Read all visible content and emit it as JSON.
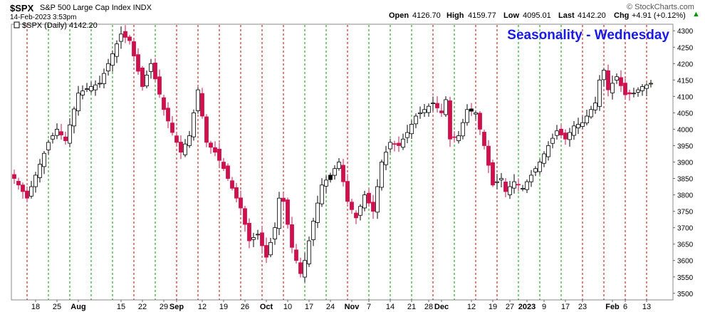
{
  "header": {
    "symbol": "$SPX",
    "description": "S&P 500 Large Cap Index INDX",
    "datetime": "14-Feb-2023 3:53pm",
    "open_label": "Open",
    "open": "4126.70",
    "high_label": "High",
    "high": "4159.77",
    "low_label": "Low",
    "low": "4095.01",
    "last_label": "Last",
    "last": "4142.20",
    "chg_label": "Chg",
    "chg": "+4.91 (+0.12%)",
    "watermark": "© StockCharts.com"
  },
  "legend": {
    "text": "$SPX (Daily) 4142.20"
  },
  "colors": {
    "up_candle": "#ffffff",
    "down_candle": "#d0104c",
    "filled_black": "#000000",
    "red_line": "#cc0000",
    "green_line": "#009900",
    "highlight": "#ffff66",
    "title": "#1a1ae6"
  },
  "chart_data": {
    "type": "candlestick",
    "title": "Seasonality - Wednesday",
    "y_range": [
      3480,
      4320
    ],
    "y_ticks": [
      3500,
      3550,
      3600,
      3650,
      3700,
      3750,
      3800,
      3850,
      3900,
      3950,
      4000,
      4050,
      4100,
      4150,
      4200,
      4250,
      4300
    ],
    "x_labels": [
      {
        "i": 5,
        "text": "18",
        "bold": false
      },
      {
        "i": 10,
        "text": "25",
        "bold": false
      },
      {
        "i": 15,
        "text": "Aug",
        "bold": true
      },
      {
        "i": 25,
        "text": "15",
        "bold": false
      },
      {
        "i": 30,
        "text": "22",
        "bold": false
      },
      {
        "i": 35,
        "text": "29",
        "bold": false
      },
      {
        "i": 38,
        "text": "Sep",
        "bold": true
      },
      {
        "i": 44,
        "text": "12",
        "bold": false
      },
      {
        "i": 49,
        "text": "19",
        "bold": false
      },
      {
        "i": 54,
        "text": "26",
        "bold": false
      },
      {
        "i": 59,
        "text": "Oct",
        "bold": true
      },
      {
        "i": 64,
        "text": "10",
        "bold": false
      },
      {
        "i": 69,
        "text": "17",
        "bold": false
      },
      {
        "i": 74,
        "text": "24",
        "bold": false
      },
      {
        "i": 79,
        "text": "Nov",
        "bold": true
      },
      {
        "i": 83,
        "text": "7",
        "bold": false
      },
      {
        "i": 88,
        "text": "14",
        "bold": false
      },
      {
        "i": 93,
        "text": "21",
        "bold": false
      },
      {
        "i": 97,
        "text": "28",
        "bold": false
      },
      {
        "i": 100,
        "text": "Dec",
        "bold": true
      },
      {
        "i": 107,
        "text": "12",
        "bold": false
      },
      {
        "i": 112,
        "text": "19",
        "bold": false
      },
      {
        "i": 116,
        "text": "27",
        "bold": false
      },
      {
        "i": 120,
        "text": "2023",
        "bold": true
      },
      {
        "i": 124,
        "text": "9",
        "bold": false
      },
      {
        "i": 129,
        "text": "17",
        "bold": false
      },
      {
        "i": 133,
        "text": "23",
        "bold": false
      },
      {
        "i": 140,
        "text": "Feb",
        "bold": true
      },
      {
        "i": 143,
        "text": "6",
        "bold": false
      },
      {
        "i": 148,
        "text": "13",
        "bold": false
      }
    ],
    "wednesday_lines": [
      {
        "i": 3,
        "color": "red"
      },
      {
        "i": 8,
        "color": "green"
      },
      {
        "i": 13,
        "color": "green"
      },
      {
        "i": 18,
        "color": "green"
      },
      {
        "i": 23,
        "color": "green"
      },
      {
        "i": 28,
        "color": "red"
      },
      {
        "i": 33,
        "color": "green"
      },
      {
        "i": 38,
        "color": "red"
      },
      {
        "i": 43,
        "color": "red"
      },
      {
        "i": 48,
        "color": "red"
      },
      {
        "i": 53,
        "color": "red"
      },
      {
        "i": 58,
        "color": "red"
      },
      {
        "i": 63,
        "color": "red"
      },
      {
        "i": 68,
        "color": "green"
      },
      {
        "i": 73,
        "color": "green"
      },
      {
        "i": 78,
        "color": "red"
      },
      {
        "i": 83,
        "color": "green"
      },
      {
        "i": 88,
        "color": "green"
      },
      {
        "i": 93,
        "color": "green"
      },
      {
        "i": 98,
        "color": "red"
      },
      {
        "i": 103,
        "color": "green"
      },
      {
        "i": 108,
        "color": "red"
      },
      {
        "i": 113,
        "color": "red"
      },
      {
        "i": 118,
        "color": "green"
      },
      {
        "i": 123,
        "color": "green"
      },
      {
        "i": 128,
        "color": "green"
      },
      {
        "i": 133,
        "color": "red"
      },
      {
        "i": 138,
        "color": "red"
      },
      {
        "i": 143,
        "color": "red"
      },
      {
        "i": 148,
        "color": "red"
      }
    ],
    "anchors": [
      [
        0,
        3850
      ],
      [
        3,
        3790
      ],
      [
        5,
        3860
      ],
      [
        8,
        3960
      ],
      [
        10,
        4000
      ],
      [
        12,
        3965
      ],
      [
        15,
        4110
      ],
      [
        18,
        4130
      ],
      [
        20,
        4140
      ],
      [
        22,
        4200
      ],
      [
        25,
        4290
      ],
      [
        27,
        4270
      ],
      [
        30,
        4130
      ],
      [
        32,
        4200
      ],
      [
        35,
        4060
      ],
      [
        37,
        3990
      ],
      [
        39,
        3930
      ],
      [
        41,
        3980
      ],
      [
        43,
        4120
      ],
      [
        45,
        3960
      ],
      [
        47,
        3930
      ],
      [
        49,
        3880
      ],
      [
        51,
        3820
      ],
      [
        53,
        3760
      ],
      [
        55,
        3660
      ],
      [
        57,
        3680
      ],
      [
        59,
        3610
      ],
      [
        61,
        3700
      ],
      [
        62,
        3790
      ],
      [
        63,
        3780
      ],
      [
        65,
        3640
      ],
      [
        67,
        3560
      ],
      [
        68,
        3600
      ],
      [
        70,
        3720
      ],
      [
        72,
        3830
      ],
      [
        74,
        3860
      ],
      [
        76,
        3900
      ],
      [
        78,
        3780
      ],
      [
        80,
        3730
      ],
      [
        82,
        3800
      ],
      [
        84,
        3750
      ],
      [
        86,
        3900
      ],
      [
        88,
        3960
      ],
      [
        90,
        3950
      ],
      [
        92,
        3990
      ],
      [
        94,
        4040
      ],
      [
        96,
        4060
      ],
      [
        98,
        4080
      ],
      [
        100,
        4050
      ],
      [
        101,
        4090
      ],
      [
        102,
        3970
      ],
      [
        104,
        3980
      ],
      [
        106,
        4060
      ],
      [
        108,
        4050
      ],
      [
        110,
        3950
      ],
      [
        112,
        3830
      ],
      [
        114,
        3850
      ],
      [
        115,
        3810
      ],
      [
        117,
        3840
      ],
      [
        119,
        3820
      ],
      [
        121,
        3860
      ],
      [
        123,
        3900
      ],
      [
        125,
        3950
      ],
      [
        127,
        3995
      ],
      [
        129,
        3970
      ],
      [
        131,
        4010
      ],
      [
        133,
        4020
      ],
      [
        135,
        4060
      ],
      [
        136,
        4080
      ],
      [
        137,
        4150
      ],
      [
        138,
        4180
      ],
      [
        139,
        4120
      ],
      [
        141,
        4160
      ],
      [
        143,
        4105
      ],
      [
        145,
        4110
      ],
      [
        147,
        4130
      ],
      [
        148,
        4135
      ],
      [
        149,
        4140
      ]
    ],
    "black_candles": [
      74,
      107
    ],
    "highlight_candles": [
      149
    ]
  }
}
